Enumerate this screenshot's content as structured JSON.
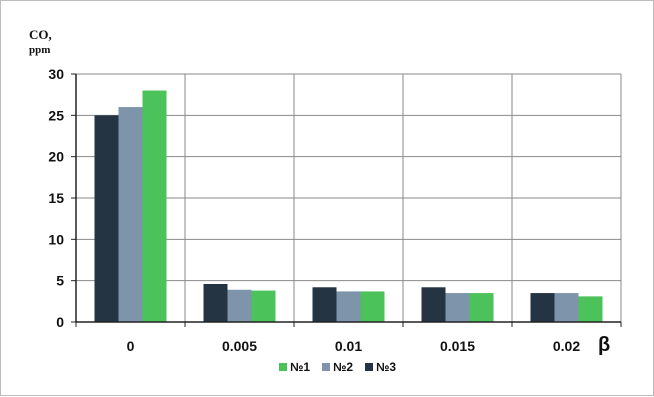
{
  "chart_data": {
    "type": "bar",
    "ylabel": "CO,",
    "ylabel_unit": "ppm",
    "xlabel": "β",
    "categories": [
      "0",
      "0.005",
      "0.01",
      "0.015",
      "0.02"
    ],
    "y_ticks": [
      "0",
      "5",
      "10",
      "15",
      "20",
      "25",
      "30"
    ],
    "ylim": [
      0,
      30
    ],
    "grid": true,
    "legend_position": "bottom",
    "series": [
      {
        "name": "№3",
        "color": "#243442",
        "values": [
          25,
          4.6,
          4.2,
          4.2,
          3.5
        ]
      },
      {
        "name": "№2",
        "color": "#7d94ab",
        "values": [
          26,
          3.9,
          3.7,
          3.5,
          3.5
        ]
      },
      {
        "name": "№1",
        "color": "#4cc25a",
        "values": [
          28,
          3.8,
          3.7,
          3.5,
          3.1
        ]
      }
    ],
    "legend_order": [
      "№1",
      "№2",
      "№3"
    ]
  }
}
